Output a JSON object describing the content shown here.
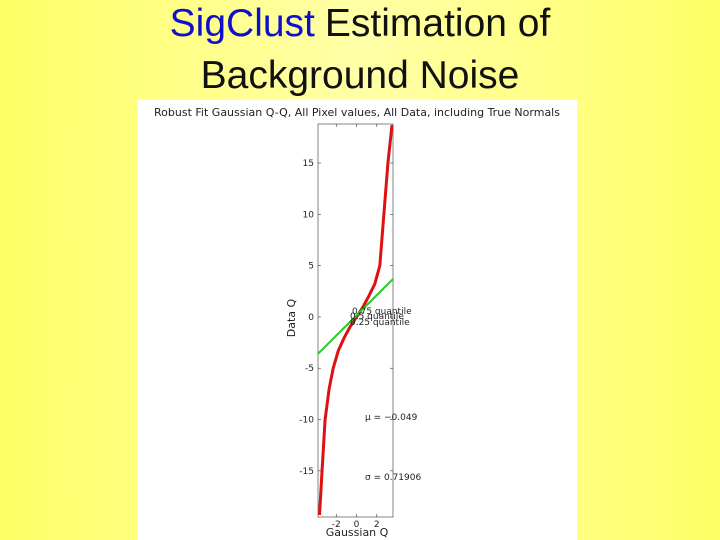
{
  "slide": {
    "title_highlight": "SigClust",
    "title_rest": "Estimation of",
    "title_line2": "Background Noise"
  },
  "chart_data": {
    "type": "line",
    "title": "Robust Fit Gaussian Q-Q, All Pixel values, All Data, including True Normals",
    "x_label": "Gaussian Q",
    "y_label": "Data Q",
    "xlim": [
      -3.8,
      3.6
    ],
    "ylim": [
      -19.5,
      18.8
    ],
    "xticks": [
      -2,
      0,
      2
    ],
    "yticks": [
      -15,
      -10,
      -5,
      0,
      5,
      10,
      15
    ],
    "series": [
      {
        "color": "#dd1111",
        "x": [
          -3.65,
          -3.4,
          -3.1,
          -2.7,
          -2.3,
          -1.8,
          -1.2,
          -0.6,
          0,
          0.6,
          1.2,
          1.8,
          2.3,
          2.7,
          3.1,
          3.5
        ],
        "values": [
          -19.3,
          -15,
          -10,
          -7,
          -5,
          -3.3,
          -2,
          -0.9,
          0,
          0.9,
          2,
          3.2,
          5,
          10,
          15,
          18.7
        ]
      },
      {
        "color": "#22cc22",
        "x": [
          -3.8,
          3.6
        ],
        "values": [
          -3.6,
          3.7
        ]
      }
    ],
    "annotations": [
      "0.75 quantile",
      "0.5 quantile",
      "0.25 quantile",
      "μ = −0.049",
      "σ = 0.71906"
    ]
  }
}
